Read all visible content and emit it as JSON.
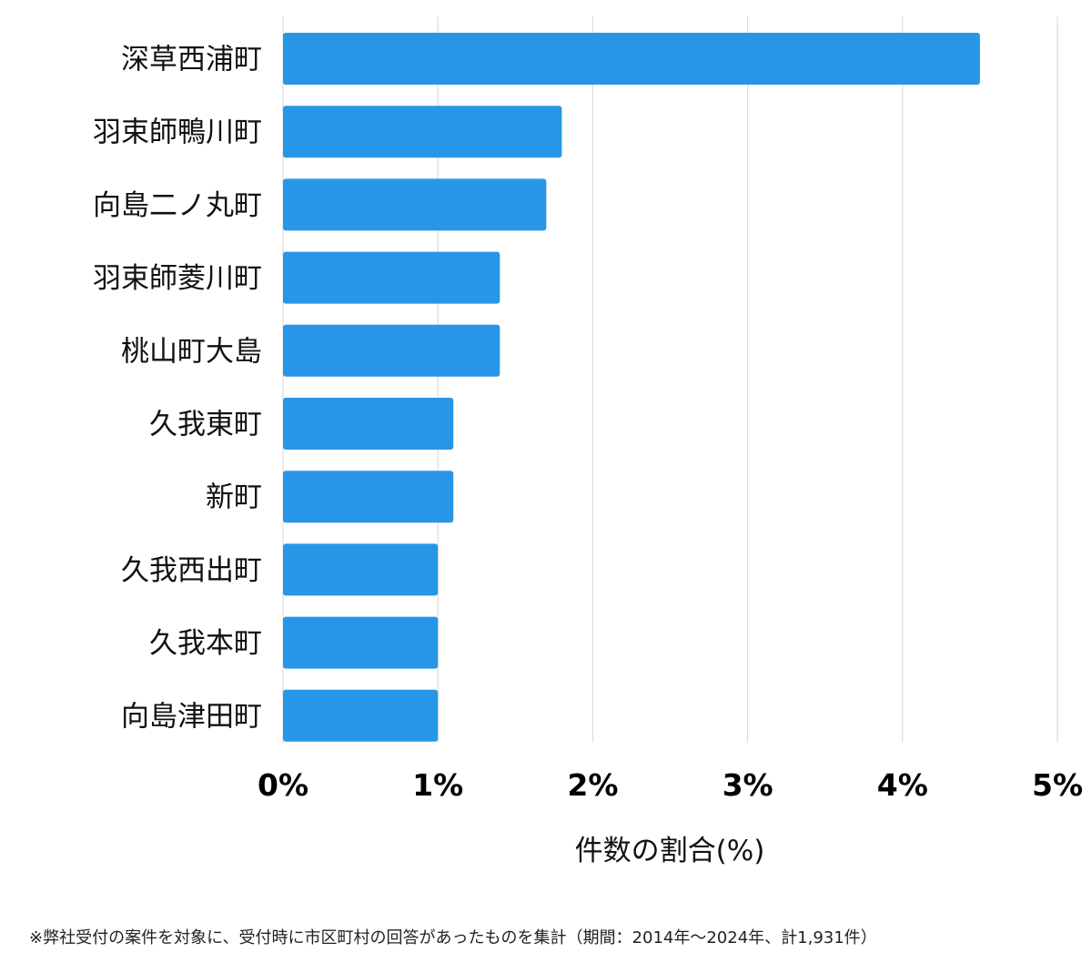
{
  "chart_data": {
    "type": "bar",
    "orientation": "horizontal",
    "categories": [
      "深草西浦町",
      "羽束師鴨川町",
      "向島二ノ丸町",
      "羽束師菱川町",
      "桃山町大島",
      "久我東町",
      "新町",
      "久我西出町",
      "久我本町",
      "向島津田町"
    ],
    "values": [
      4.5,
      1.8,
      1.7,
      1.4,
      1.4,
      1.1,
      1.1,
      1.0,
      1.0,
      1.0
    ],
    "xlim": [
      0,
      5
    ],
    "xticks": [
      0,
      1,
      2,
      3,
      4,
      5
    ],
    "tick_labels": [
      "0%",
      "1%",
      "2%",
      "3%",
      "4%",
      "5%"
    ],
    "xlabel": "件数の割合(%)",
    "ylabel": "",
    "grid": true,
    "bar_color": "#2896e6"
  },
  "footnote": "※弊社受付の案件を対象に、受付時に市区町村の回答があったものを集計（期間：2014年〜2024年、計1,931件）"
}
